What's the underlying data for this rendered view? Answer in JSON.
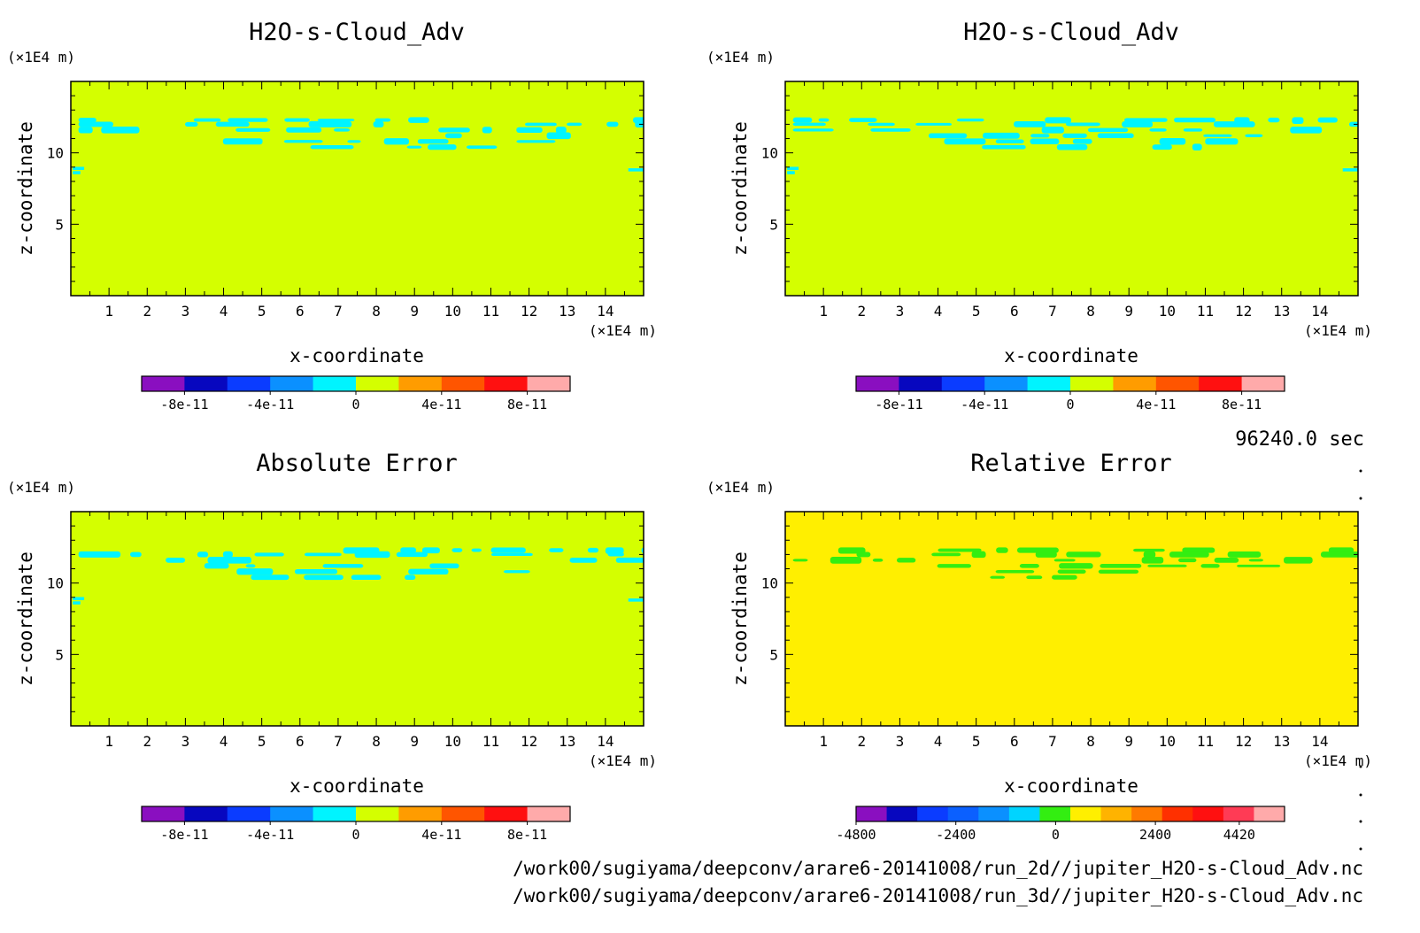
{
  "panels": [
    {
      "id": "p1",
      "title": "H2O-s-Cloud_Adv",
      "xlabel": "x-coordinate",
      "ylabel": "z-coordinate",
      "x_unit": "(×1E4 m)",
      "y_unit": "(×1E4 m)",
      "field_color": "#d4ff00",
      "feature_color": "#00f4ff",
      "colorbar": {
        "colors": [
          "#8a0fc0",
          "#0707bf",
          "#0b3cff",
          "#0b90ff",
          "#00f4ff",
          "#d4ff00",
          "#ff9c00",
          "#ff5500",
          "#ff1010",
          "#ffaaaa"
        ],
        "ticks": [
          {
            "label": "-8e-11",
            "pos": 1
          },
          {
            "label": "-4e-11",
            "pos": 3
          },
          {
            "label": "0",
            "pos": 5
          },
          {
            "label": "4e-11",
            "pos": 7
          },
          {
            "label": "8e-11",
            "pos": 9
          }
        ]
      }
    },
    {
      "id": "p2",
      "title": "H2O-s-Cloud_Adv",
      "xlabel": "x-coordinate",
      "ylabel": "z-coordinate",
      "x_unit": "(×1E4 m)",
      "y_unit": "(×1E4 m)",
      "field_color": "#d4ff00",
      "feature_color": "#00f4ff",
      "colorbar": {
        "colors": [
          "#8a0fc0",
          "#0707bf",
          "#0b3cff",
          "#0b90ff",
          "#00f4ff",
          "#d4ff00",
          "#ff9c00",
          "#ff5500",
          "#ff1010",
          "#ffaaaa"
        ],
        "ticks": [
          {
            "label": "-8e-11",
            "pos": 1
          },
          {
            "label": "-4e-11",
            "pos": 3
          },
          {
            "label": "0",
            "pos": 5
          },
          {
            "label": "4e-11",
            "pos": 7
          },
          {
            "label": "8e-11",
            "pos": 9
          }
        ]
      }
    },
    {
      "id": "p3",
      "title": "Absolute Error",
      "xlabel": "x-coordinate",
      "ylabel": "z-coordinate",
      "x_unit": "(×1E4 m)",
      "y_unit": "(×1E4 m)",
      "field_color": "#d4ff00",
      "feature_color": "#00f4ff",
      "colorbar": {
        "colors": [
          "#8a0fc0",
          "#0707bf",
          "#0b3cff",
          "#0b90ff",
          "#00f4ff",
          "#d4ff00",
          "#ff9c00",
          "#ff5500",
          "#ff1010",
          "#ffaaaa"
        ],
        "ticks": [
          {
            "label": "-8e-11",
            "pos": 1
          },
          {
            "label": "-4e-11",
            "pos": 3
          },
          {
            "label": "0",
            "pos": 5
          },
          {
            "label": "4e-11",
            "pos": 7
          },
          {
            "label": "8e-11",
            "pos": 9
          }
        ]
      }
    },
    {
      "id": "p4",
      "title": "Relative Error",
      "xlabel": "x-coordinate",
      "ylabel": "z-coordinate",
      "x_unit": "(×1E4 m)",
      "y_unit": "(×1E4 m)",
      "field_color": "#ffef00",
      "feature_color": "#33ee11",
      "colorbar": {
        "colors": [
          "#8a0fc0",
          "#0707bf",
          "#0b3cff",
          "#0b60ff",
          "#0b90ff",
          "#00d4ff",
          "#33ee11",
          "#ffef00",
          "#ffb300",
          "#ff7a00",
          "#ff3000",
          "#ff1010",
          "#ff3b55",
          "#ffaaaa"
        ],
        "ticks": [
          {
            "label": "-4800",
            "pos": 0
          },
          {
            "label": "-2400",
            "pos": 3.26
          },
          {
            "label": "0",
            "pos": 6.52
          },
          {
            "label": "2400",
            "pos": 9.78
          },
          {
            "label": "4420",
            "pos": 12.52
          }
        ]
      }
    }
  ],
  "chart_data": [
    {
      "type": "heatmap",
      "title": "H2O-s-Cloud_Adv",
      "xlabel": "x-coordinate",
      "ylabel": "z-coordinate",
      "x_unit": "(×1E4 m)",
      "y_unit": "(×1E4 m)",
      "xlim": [
        0,
        15
      ],
      "ylim": [
        0,
        15
      ],
      "xticks": [
        1,
        2,
        3,
        4,
        5,
        6,
        7,
        8,
        9,
        10,
        11,
        12,
        13,
        14
      ],
      "yticks": [
        5,
        10
      ],
      "colorbar_ticks": [
        "-8e-11",
        "-4e-11",
        "0",
        "4e-11",
        "8e-11"
      ],
      "background_level": "0 to 2e-11",
      "feature_level": "-2e-11 to 0",
      "feature_z_range": [
        10,
        12.5
      ]
    },
    {
      "type": "heatmap",
      "title": "H2O-s-Cloud_Adv",
      "xlabel": "x-coordinate",
      "ylabel": "z-coordinate",
      "x_unit": "(×1E4 m)",
      "y_unit": "(×1E4 m)",
      "xlim": [
        0,
        15
      ],
      "ylim": [
        0,
        15
      ],
      "xticks": [
        1,
        2,
        3,
        4,
        5,
        6,
        7,
        8,
        9,
        10,
        11,
        12,
        13,
        14
      ],
      "yticks": [
        5,
        10
      ],
      "colorbar_ticks": [
        "-8e-11",
        "-4e-11",
        "0",
        "4e-11",
        "8e-11"
      ],
      "background_level": "0 to 2e-11",
      "feature_level": "-2e-11 to 0",
      "feature_z_range": [
        10,
        12.5
      ]
    },
    {
      "type": "heatmap",
      "title": "Absolute Error",
      "xlabel": "x-coordinate",
      "ylabel": "z-coordinate",
      "x_unit": "(×1E4 m)",
      "y_unit": "(×1E4 m)",
      "xlim": [
        0,
        15
      ],
      "ylim": [
        0,
        15
      ],
      "xticks": [
        1,
        2,
        3,
        4,
        5,
        6,
        7,
        8,
        9,
        10,
        11,
        12,
        13,
        14
      ],
      "yticks": [
        5,
        10
      ],
      "colorbar_ticks": [
        "-8e-11",
        "-4e-11",
        "0",
        "4e-11",
        "8e-11"
      ],
      "background_level": "0 to 2e-11",
      "feature_level": "-2e-11 to 0",
      "feature_z_range": [
        10,
        12.5
      ]
    },
    {
      "type": "heatmap",
      "title": "Relative Error",
      "xlabel": "x-coordinate",
      "ylabel": "z-coordinate",
      "x_unit": "(×1E4 m)",
      "y_unit": "(×1E4 m)",
      "xlim": [
        0,
        15
      ],
      "ylim": [
        0,
        15
      ],
      "xticks": [
        1,
        2,
        3,
        4,
        5,
        6,
        7,
        8,
        9,
        10,
        11,
        12,
        13,
        14
      ],
      "yticks": [
        5,
        10
      ],
      "colorbar_ticks": [
        "-4800",
        "-2400",
        "0",
        "2400",
        "4420"
      ],
      "background_level": "0 to 740",
      "feature_level": "-740 to 0",
      "feature_z_range": [
        10,
        12.5
      ]
    }
  ],
  "time_label": "96240.0 sec",
  "file_paths": [
    "/work00/sugiyama/deepconv/arare6-20141008/run_2d//jupiter_H2O-s-Cloud_Adv.nc",
    "/work00/sugiyama/deepconv/arare6-20141008/run_3d//jupiter_H2O-s-Cloud_Adv.nc"
  ]
}
